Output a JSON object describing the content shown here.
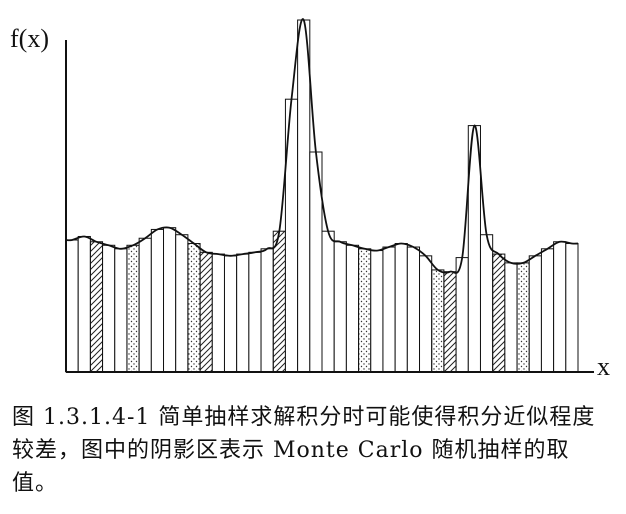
{
  "figure": {
    "y_axis_label": "f(x)",
    "x_axis_label": "x",
    "caption": "图 1.3.1.4-1 简单抽样求解积分时可能使得积分近似程度较差，图中的阴影区表示 Monte Carlo 随机抽样的取值。"
  },
  "chart_data": {
    "type": "bar",
    "description_of_shading": "hatched and dotted bars mark Monte Carlo samples",
    "ylabel": "f(x)",
    "xlabel": "x",
    "bars": [
      {
        "v": 0.75,
        "s": "none"
      },
      {
        "v": 0.77,
        "s": "none"
      },
      {
        "v": 0.74,
        "s": "hatch"
      },
      {
        "v": 0.72,
        "s": "none"
      },
      {
        "v": 0.7,
        "s": "none"
      },
      {
        "v": 0.72,
        "s": "dots"
      },
      {
        "v": 0.76,
        "s": "none"
      },
      {
        "v": 0.81,
        "s": "none"
      },
      {
        "v": 0.82,
        "s": "none"
      },
      {
        "v": 0.78,
        "s": "none"
      },
      {
        "v": 0.73,
        "s": "dots"
      },
      {
        "v": 0.68,
        "s": "hatch"
      },
      {
        "v": 0.67,
        "s": "none"
      },
      {
        "v": 0.66,
        "s": "none"
      },
      {
        "v": 0.67,
        "s": "none"
      },
      {
        "v": 0.68,
        "s": "none"
      },
      {
        "v": 0.7,
        "s": "none"
      },
      {
        "v": 0.8,
        "s": "hatch"
      },
      {
        "v": 1.55,
        "s": "none"
      },
      {
        "v": 2.0,
        "s": "none"
      },
      {
        "v": 1.25,
        "s": "none"
      },
      {
        "v": 0.8,
        "s": "none"
      },
      {
        "v": 0.74,
        "s": "none"
      },
      {
        "v": 0.72,
        "s": "none"
      },
      {
        "v": 0.7,
        "s": "dots"
      },
      {
        "v": 0.69,
        "s": "none"
      },
      {
        "v": 0.71,
        "s": "none"
      },
      {
        "v": 0.73,
        "s": "none"
      },
      {
        "v": 0.71,
        "s": "none"
      },
      {
        "v": 0.66,
        "s": "none"
      },
      {
        "v": 0.58,
        "s": "dots"
      },
      {
        "v": 0.57,
        "s": "hatch"
      },
      {
        "v": 0.65,
        "s": "none"
      },
      {
        "v": 1.4,
        "s": "none"
      },
      {
        "v": 0.78,
        "s": "none"
      },
      {
        "v": 0.67,
        "s": "hatch"
      },
      {
        "v": 0.62,
        "s": "none"
      },
      {
        "v": 0.62,
        "s": "dots"
      },
      {
        "v": 0.66,
        "s": "none"
      },
      {
        "v": 0.7,
        "s": "none"
      },
      {
        "v": 0.74,
        "s": "none"
      },
      {
        "v": 0.73,
        "s": "none"
      }
    ]
  }
}
